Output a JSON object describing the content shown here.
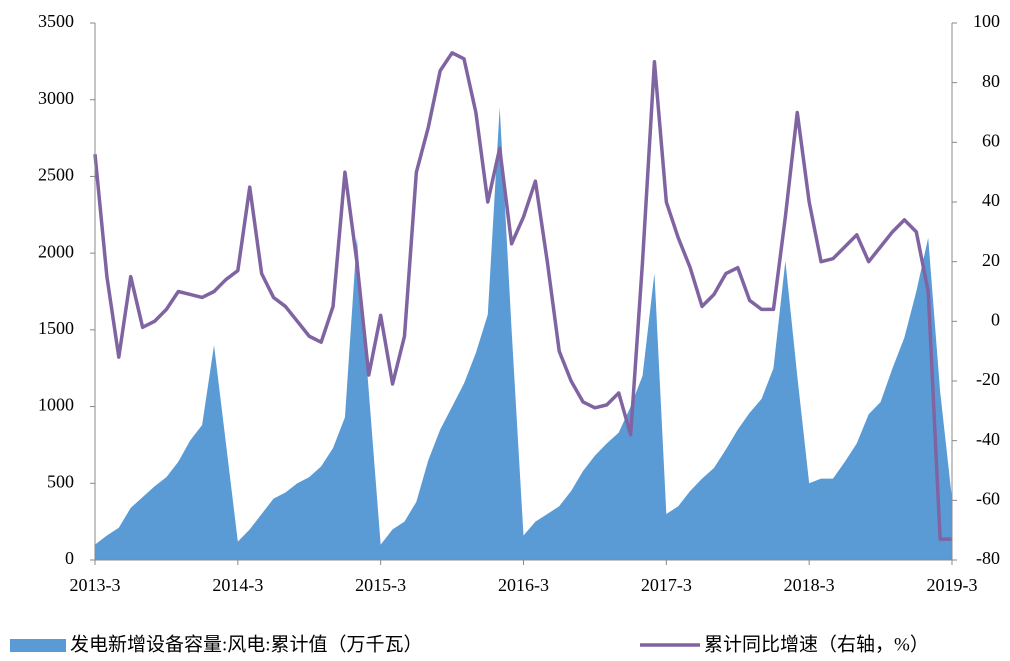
{
  "chart_data": {
    "type": "area-line",
    "categories": [
      "2013-3",
      null,
      null,
      null,
      null,
      null,
      null,
      null,
      null,
      null,
      null,
      null,
      "2014-3",
      null,
      null,
      null,
      null,
      null,
      null,
      null,
      null,
      null,
      null,
      null,
      "2015-3",
      null,
      null,
      null,
      null,
      null,
      null,
      null,
      null,
      null,
      null,
      null,
      "2016-3",
      null,
      null,
      null,
      null,
      null,
      null,
      null,
      null,
      null,
      null,
      null,
      "2017-3",
      null,
      null,
      null,
      null,
      null,
      null,
      null,
      null,
      null,
      null,
      null,
      "2018-3",
      null,
      null,
      null,
      null,
      null,
      null,
      null,
      null,
      null,
      null,
      null,
      "2019-3"
    ],
    "series": [
      {
        "name": "发电新增设备容量:风电:累计值（万千瓦）",
        "type": "area",
        "color": "#5b9bd5",
        "values": [
          100,
          160,
          210,
          340,
          410,
          480,
          540,
          640,
          780,
          880,
          1400,
          760,
          120,
          200,
          300,
          400,
          440,
          500,
          540,
          610,
          730,
          930,
          2100,
          1100,
          100,
          200,
          250,
          380,
          650,
          850,
          1000,
          1150,
          1350,
          1600,
          2950,
          1500,
          160,
          250,
          300,
          350,
          450,
          580,
          680,
          760,
          830,
          1000,
          1200,
          1870,
          300,
          350,
          450,
          530,
          600,
          720,
          850,
          960,
          1050,
          1250,
          1950,
          1200,
          500,
          530,
          530,
          640,
          760,
          950,
          1030,
          1250,
          1450,
          1750,
          2100,
          1100,
          400
        ]
      },
      {
        "name": "累计同比增速（右轴，%）",
        "type": "line",
        "axis": "y2",
        "color": "#8064a2",
        "values": [
          56,
          15,
          -12,
          15,
          -2,
          0,
          4,
          10,
          9,
          8,
          10,
          14,
          17,
          45,
          16,
          8,
          5,
          0,
          -5,
          -7,
          5,
          50,
          20,
          -18,
          2,
          -21,
          -5,
          50,
          65,
          84,
          90,
          88,
          70,
          40,
          58,
          26,
          35,
          47,
          20,
          -10,
          -20,
          -27,
          -29,
          -28,
          -24,
          -38,
          20,
          87,
          40,
          28,
          18,
          5,
          9,
          16,
          18,
          7,
          4,
          4,
          35,
          70,
          40,
          20,
          21,
          25,
          29,
          20,
          25,
          30,
          34,
          30,
          10,
          -73,
          -73
        ]
      }
    ],
    "ylim": [
      0,
      3500
    ],
    "yticks": [
      0,
      500,
      1000,
      1500,
      2000,
      2500,
      3000,
      3500
    ],
    "y2lim": [
      -80,
      100
    ],
    "y2ticks": [
      -80,
      -60,
      -40,
      -20,
      0,
      20,
      40,
      60,
      80,
      100
    ]
  }
}
